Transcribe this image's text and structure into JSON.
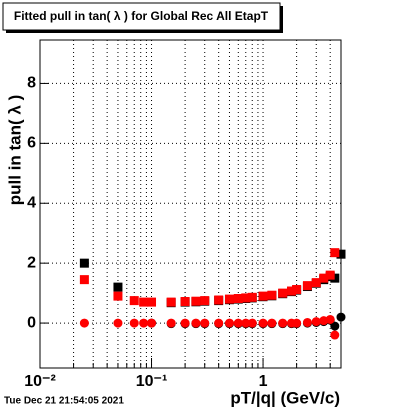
{
  "chart_data": {
    "type": "scatter",
    "title": "Fitted pull in tan( λ ) for Global Rec All EtapT",
    "x_label": "pT/|q| (GeV/c)",
    "y_label": "pull in tan( λ )",
    "timestamp": "Tue Dec 21 21:54:05 2021",
    "log_x": true,
    "grid": true,
    "x": [
      0.025,
      0.05,
      0.07,
      0.085,
      0.1,
      0.15,
      0.2,
      0.25,
      0.3,
      0.4,
      0.5,
      0.6,
      0.7,
      0.8,
      1.0,
      1.2,
      1.5,
      1.8,
      2.0,
      2.5,
      3.0,
      3.5,
      4.0,
      4.4,
      5.0
    ],
    "series": [
      {
        "name": "black-mean",
        "marker": "square",
        "color": "#000000",
        "values": [
          2.0,
          1.2,
          null,
          null,
          null,
          0.68,
          0.7,
          0.71,
          0.73,
          0.75,
          0.78,
          0.8,
          0.82,
          0.84,
          0.88,
          0.91,
          0.98,
          1.05,
          1.1,
          1.22,
          1.33,
          1.45,
          1.55,
          1.5,
          2.3
        ]
      },
      {
        "name": "red-mean",
        "marker": "square",
        "color": "#ff0000",
        "values": [
          1.45,
          0.9,
          0.75,
          0.7,
          0.7,
          0.7,
          0.72,
          0.73,
          0.75,
          0.77,
          0.8,
          0.82,
          0.84,
          0.86,
          0.9,
          0.93,
          1.0,
          1.07,
          1.12,
          1.25,
          1.35,
          1.5,
          1.6,
          2.35,
          null
        ]
      },
      {
        "name": "black-width",
        "marker": "circle",
        "color": "#000000",
        "values": [
          null,
          null,
          null,
          null,
          0.0,
          -0.02,
          -0.02,
          -0.02,
          -0.02,
          -0.02,
          -0.02,
          -0.02,
          -0.02,
          -0.02,
          -0.02,
          -0.02,
          -0.02,
          -0.02,
          -0.02,
          0.0,
          0.02,
          0.05,
          0.1,
          -0.1,
          0.2
        ]
      },
      {
        "name": "red-width",
        "marker": "circle",
        "color": "#ff0000",
        "values": [
          0.0,
          0.0,
          0.0,
          0.0,
          0.0,
          0.0,
          0.0,
          0.0,
          0.0,
          0.0,
          0.0,
          0.0,
          0.0,
          0.0,
          0.0,
          0.0,
          0.0,
          0.0,
          0.0,
          0.02,
          0.05,
          0.08,
          0.12,
          -0.4,
          null
        ]
      }
    ],
    "xlim": [
      0.01,
      5.0
    ],
    "ylim": [
      -1.5,
      9.45
    ],
    "xticks": [
      {
        "value": 0.01,
        "label": "10⁻²"
      },
      {
        "value": 0.1,
        "label": "10⁻¹"
      },
      1
    ],
    "xminorticks": [
      0.02,
      0.03,
      0.04,
      0.05,
      0.06,
      0.07,
      0.08,
      0.09,
      0.2,
      0.3,
      0.4,
      0.5,
      0.6,
      0.7,
      0.8,
      0.9,
      2,
      3,
      4
    ],
    "yticks": [
      0,
      2,
      4,
      6,
      8
    ]
  }
}
